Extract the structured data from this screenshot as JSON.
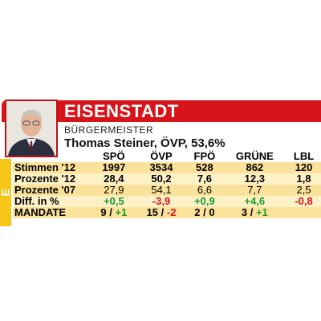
{
  "header": {
    "title": "EISENSTADT",
    "role": "BÜRGERMEISTER",
    "mayor": "Thomas Steiner, ÖVP, 53,6%",
    "sidebar": "E"
  },
  "table": {
    "columns": [
      "SPÖ",
      "ÖVP",
      "FPÖ",
      "GRÜNE",
      "LBL"
    ],
    "rows": [
      {
        "label": "Stimmen '12",
        "cells": [
          "1997",
          "3534",
          "528",
          "862",
          "120"
        ]
      },
      {
        "label": "Prozente '12",
        "cells": [
          "28,4",
          "50,2",
          "7,6",
          "12,3",
          "1,8"
        ]
      },
      {
        "label": "Prozente '07",
        "cells": [
          "27,9",
          "54,1",
          "6,6",
          "7,7",
          "2,5"
        ]
      },
      {
        "label": "Diff. in %",
        "cells": [
          "+0,5",
          "-3,9",
          "+0,9",
          "+4,6",
          "-0,8"
        ]
      }
    ],
    "mandate": {
      "label": "MANDATE",
      "cells": [
        {
          "seats": "9",
          "change": "+1"
        },
        {
          "seats": "15",
          "change": "-2"
        },
        {
          "seats": "2",
          "change": "0"
        },
        {
          "seats": "3",
          "change": "+1"
        }
      ]
    }
  }
}
